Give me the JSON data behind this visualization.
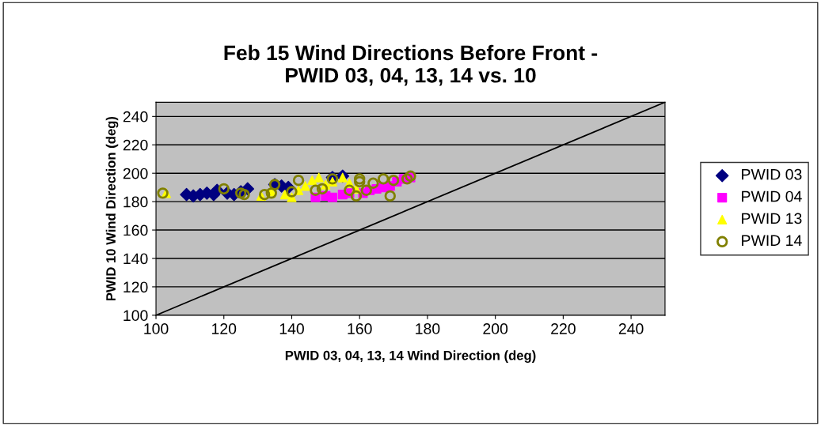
{
  "chart_data": {
    "type": "scatter",
    "title": "Feb 15 Wind Directions Before Front -\nPWID 03, 04, 13, 14 vs. 10",
    "xlabel": "PWID 03, 04, 13, 14 Wind Direction (deg)",
    "ylabel": "PWID 10 Wind Direction (deg)",
    "xlim": [
      100,
      250
    ],
    "xticks": [
      100,
      120,
      140,
      160,
      180,
      200,
      220,
      240
    ],
    "ylim": [
      100,
      250
    ],
    "yticks": [
      100,
      120,
      140,
      160,
      180,
      200,
      220,
      240
    ],
    "grid": "y",
    "legend": "right",
    "series": [
      {
        "name": "PWID 03",
        "color": "#000080",
        "marker": "diamond",
        "x": [
          109,
          111,
          113,
          115,
          117,
          118,
          121,
          123,
          125,
          127,
          135,
          137,
          139,
          152,
          155
        ],
        "values": [
          185,
          184,
          185,
          186,
          185,
          188,
          186,
          185,
          187,
          189,
          192,
          191,
          190,
          197,
          198
        ]
      },
      {
        "name": "PWID 04",
        "color": "#ff00ff",
        "marker": "square",
        "x": [
          147,
          150,
          152,
          155,
          157,
          159,
          161,
          163,
          165,
          167,
          169,
          171,
          173,
          175
        ],
        "values": [
          183,
          184,
          183,
          185,
          186,
          null,
          186,
          188,
          189,
          190,
          191,
          194,
          196,
          197
        ]
      },
      {
        "name": "PWID 13",
        "color": "#ffff00",
        "marker": "triangle",
        "x": [
          103,
          131,
          134,
          138,
          140,
          142,
          144,
          146,
          148,
          150,
          152,
          155,
          157,
          159
        ],
        "values": [
          186,
          184,
          187,
          185,
          183,
          188,
          191,
          195,
          197,
          192,
          194,
          197,
          193,
          189
        ]
      },
      {
        "name": "PWID 14",
        "color": "#808000",
        "marker": "circle",
        "x": [
          102,
          120,
          125,
          126,
          132,
          134,
          135,
          140,
          142,
          147,
          149,
          152,
          157,
          159,
          160,
          160,
          162,
          164,
          167,
          169,
          170,
          174,
          175
        ],
        "values": [
          186,
          189,
          186,
          185,
          185,
          186,
          192,
          187,
          195,
          188,
          189,
          196,
          188,
          184,
          194,
          196,
          188,
          193,
          196,
          184,
          195,
          196,
          198
        ]
      },
      {
        "type": "line",
        "color": "#000000",
        "marker": "none",
        "x": [
          100,
          250
        ],
        "values": [
          100,
          250
        ]
      }
    ]
  }
}
